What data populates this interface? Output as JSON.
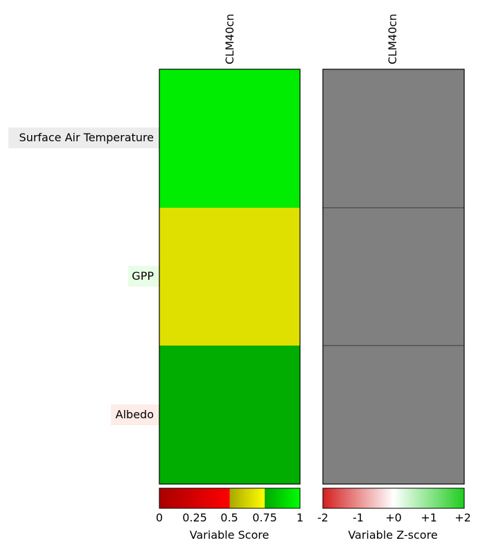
{
  "chart_data": {
    "type": "heatmap",
    "rows": [
      {
        "label": "Surface Air Temperature",
        "label_bg": "#ececec"
      },
      {
        "label": "GPP",
        "label_bg": "#e8fde6"
      },
      {
        "label": "Albedo",
        "label_bg": "#fdece8"
      }
    ],
    "panels": [
      {
        "column_label": "CLM40cn",
        "cells": [
          {
            "value": null,
            "color": "#00ec00"
          },
          {
            "value": null,
            "color": "#dfdf00"
          },
          {
            "value": null,
            "color": "#00ad00"
          }
        ],
        "colorbar": {
          "label": "Variable Score",
          "ticks": [
            "0",
            "0.25",
            "0.5",
            "0.75",
            "1"
          ],
          "range": [
            0,
            1
          ]
        }
      },
      {
        "column_label": "CLM40cn",
        "cells": [
          {
            "value": null,
            "color": "#808080"
          },
          {
            "value": null,
            "color": "#808080"
          },
          {
            "value": null,
            "color": "#808080"
          }
        ],
        "colorbar": {
          "label": "Variable Z-score",
          "ticks": [
            "-2",
            "-1",
            "+0",
            "+1",
            "+2"
          ],
          "range": [
            -2,
            2
          ]
        }
      }
    ]
  }
}
